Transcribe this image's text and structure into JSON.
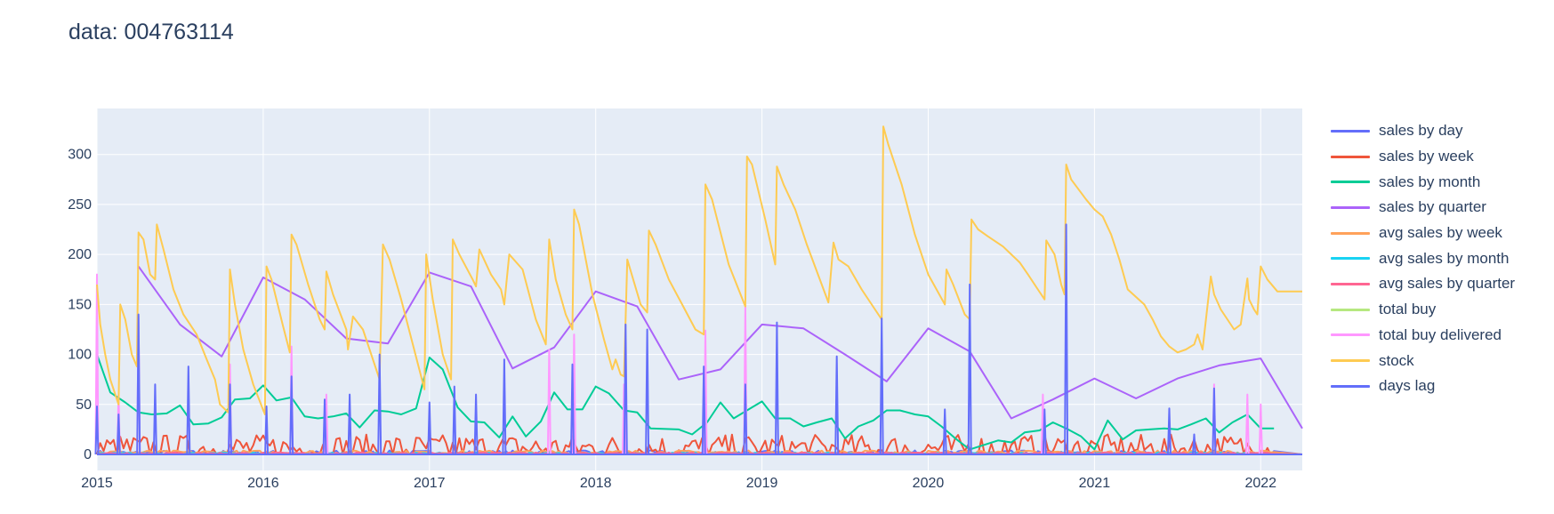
{
  "title": "data: 004763114",
  "colors": {
    "plot_bg": "#e5ecf6",
    "grid": "#ffffff",
    "text": "#2a3f5f"
  },
  "chart_data": {
    "type": "line",
    "title": "data: 004763114",
    "xlabel": "",
    "ylabel": "",
    "xlim": [
      2015.0,
      2022.25
    ],
    "ylim": [
      -16,
      346
    ],
    "x_ticks": [
      2015,
      2016,
      2017,
      2018,
      2019,
      2020,
      2021,
      2022
    ],
    "x_tick_labels": [
      "2015",
      "2016",
      "2017",
      "2018",
      "2019",
      "2020",
      "2021",
      "2022"
    ],
    "y_ticks": [
      0,
      50,
      100,
      150,
      200,
      250,
      300
    ],
    "y_tick_labels": [
      "0",
      "50",
      "100",
      "150",
      "200",
      "250",
      "300"
    ],
    "grid": true,
    "legend_position": "right",
    "series": [
      {
        "name": "sales by day",
        "color": "#636efa",
        "style": "noise",
        "level": 1,
        "amp": 3
      },
      {
        "name": "sales by week",
        "color": "#ef553b",
        "style": "noise",
        "level": 6,
        "amp": 14
      },
      {
        "name": "sales by month",
        "color": "#00cc96",
        "style": "line",
        "x": [
          2015.0,
          2015.08,
          2015.17,
          2015.25,
          2015.33,
          2015.42,
          2015.5,
          2015.58,
          2015.67,
          2015.75,
          2015.83,
          2015.92,
          2016.0,
          2016.08,
          2016.17,
          2016.25,
          2016.33,
          2016.42,
          2016.5,
          2016.58,
          2016.67,
          2016.75,
          2016.83,
          2016.92,
          2017.0,
          2017.08,
          2017.17,
          2017.25,
          2017.33,
          2017.42,
          2017.5,
          2017.58,
          2017.67,
          2017.75,
          2017.83,
          2017.92,
          2018.0,
          2018.08,
          2018.17,
          2018.25,
          2018.33,
          2018.5,
          2018.58,
          2018.67,
          2018.75,
          2018.83,
          2018.92,
          2019.0,
          2019.08,
          2019.17,
          2019.25,
          2019.33,
          2019.42,
          2019.5,
          2019.58,
          2019.67,
          2019.75,
          2019.83,
          2019.92,
          2020.0,
          2020.08,
          2020.17,
          2020.25,
          2020.42,
          2020.5,
          2020.58,
          2020.67,
          2020.75,
          2020.83,
          2020.92,
          2021.0,
          2021.08,
          2021.17,
          2021.25,
          2021.33,
          2021.42,
          2021.5,
          2021.58,
          2021.67,
          2021.75,
          2021.83,
          2021.92,
          2022.0,
          2022.08
        ],
        "y": [
          100,
          62,
          52,
          42,
          40,
          41,
          49,
          30,
          31,
          37,
          55,
          56,
          69,
          54,
          57,
          38,
          36,
          38,
          41,
          27,
          44,
          43,
          40,
          46,
          97,
          85,
          47,
          33,
          32,
          17,
          38,
          18,
          33,
          62,
          45,
          45,
          68,
          61,
          44,
          42,
          26,
          25,
          20,
          32,
          52,
          36,
          45,
          53,
          36,
          36,
          28,
          32,
          36,
          16,
          28,
          34,
          44,
          44,
          40,
          38,
          28,
          15,
          5,
          14,
          12,
          22,
          24,
          32,
          26,
          18,
          5,
          34,
          15,
          24,
          25,
          26,
          25,
          30,
          36,
          22,
          32,
          40,
          26,
          26
        ]
      },
      {
        "name": "sales by quarter",
        "color": "#ab63fa",
        "style": "line",
        "x": [
          2015.25,
          2015.5,
          2015.75,
          2016.0,
          2016.25,
          2016.5,
          2016.75,
          2017.0,
          2017.25,
          2017.5,
          2017.75,
          2018.0,
          2018.25,
          2018.5,
          2018.75,
          2019.0,
          2019.25,
          2019.5,
          2019.75,
          2020.0,
          2020.25,
          2020.5,
          2020.75,
          2021.0,
          2021.25,
          2021.5,
          2021.75,
          2022.0,
          2022.25
        ],
        "y": [
          188,
          130,
          98,
          177,
          155,
          116,
          111,
          182,
          168,
          86,
          107,
          163,
          148,
          75,
          85,
          130,
          126,
          100,
          73,
          126,
          103,
          36,
          55,
          76,
          56,
          76,
          89,
          96,
          26
        ]
      },
      {
        "name": "avg sales by week",
        "color": "#ffa15a",
        "style": "noise",
        "level": 2,
        "amp": 2
      },
      {
        "name": "avg sales by month",
        "color": "#19d3f3",
        "style": "noise",
        "level": 1,
        "amp": 1
      },
      {
        "name": "avg sales by quarter",
        "color": "#ff6692",
        "style": "noise",
        "level": 1,
        "amp": 1
      },
      {
        "name": "total buy",
        "color": "#b6e880",
        "style": "zero"
      },
      {
        "name": "total buy delivered",
        "color": "#ff97ff",
        "style": "spikes",
        "x": [
          2015.0,
          2015.13,
          2015.25,
          2015.8,
          2016.17,
          2016.38,
          2017.72,
          2017.87,
          2018.17,
          2018.66,
          2018.9,
          2020.69,
          2021.72,
          2021.92,
          2022.0
        ],
        "y": [
          180,
          60,
          138,
          90,
          108,
          60,
          105,
          120,
          70,
          124,
          150,
          60,
          70,
          60,
          50
        ]
      },
      {
        "name": "stock",
        "color": "#fecb52",
        "style": "line",
        "x": [
          2015.0,
          2015.02,
          2015.05,
          2015.08,
          2015.13,
          2015.14,
          2015.17,
          2015.21,
          2015.24,
          2015.25,
          2015.28,
          2015.32,
          2015.35,
          2015.36,
          2015.4,
          2015.46,
          2015.52,
          2015.6,
          2015.66,
          2015.71,
          2015.74,
          2015.79,
          2015.8,
          2015.83,
          2015.88,
          2015.94,
          2016.01,
          2016.02,
          2016.05,
          2016.12,
          2016.16,
          2016.17,
          2016.2,
          2016.27,
          2016.34,
          2016.37,
          2016.38,
          2016.42,
          2016.5,
          2016.51,
          2016.54,
          2016.6,
          2016.63,
          2016.7,
          2016.72,
          2016.76,
          2016.83,
          2016.9,
          2016.97,
          2016.98,
          2017.02,
          2017.08,
          2017.13,
          2017.14,
          2017.18,
          2017.26,
          2017.28,
          2017.3,
          2017.37,
          2017.43,
          2017.45,
          2017.48,
          2017.56,
          2017.64,
          2017.7,
          2017.72,
          2017.76,
          2017.82,
          2017.86,
          2017.87,
          2017.9,
          2017.98,
          2018.05,
          2018.1,
          2018.12,
          2018.15,
          2018.17,
          2018.19,
          2018.27,
          2018.31,
          2018.32,
          2018.36,
          2018.44,
          2018.52,
          2018.6,
          2018.65,
          2018.66,
          2018.7,
          2018.8,
          2018.9,
          2018.91,
          2018.94,
          2019.02,
          2019.08,
          2019.09,
          2019.13,
          2019.2,
          2019.27,
          2019.4,
          2019.43,
          2019.46,
          2019.52,
          2019.6,
          2019.68,
          2019.72,
          2019.73,
          2019.76,
          2019.84,
          2019.92,
          2020.0,
          2020.1,
          2020.11,
          2020.15,
          2020.22,
          2020.25,
          2020.26,
          2020.3,
          2020.36,
          2020.45,
          2020.5,
          2020.55,
          2020.6,
          2020.66,
          2020.7,
          2020.71,
          2020.76,
          2020.8,
          2020.82,
          2020.83,
          2020.86,
          2020.95,
          2021.0,
          2021.05,
          2021.1,
          2021.15,
          2021.2,
          2021.3,
          2021.35,
          2021.4,
          2021.45,
          2021.5,
          2021.55,
          2021.6,
          2021.62,
          2021.65,
          2021.7,
          2021.72,
          2021.76,
          2021.84,
          2021.88,
          2021.92,
          2021.93,
          2021.96,
          2021.98,
          2022.0,
          2022.04,
          2022.1,
          2022.25
        ],
        "y": [
          170,
          130,
          100,
          75,
          50,
          150,
          135,
          100,
          88,
          222,
          215,
          180,
          175,
          230,
          205,
          165,
          140,
          120,
          95,
          75,
          50,
          42,
          185,
          150,
          105,
          70,
          40,
          188,
          175,
          128,
          102,
          220,
          210,
          170,
          135,
          125,
          183,
          160,
          125,
          105,
          138,
          125,
          110,
          75,
          210,
          195,
          155,
          110,
          65,
          200,
          155,
          100,
          75,
          215,
          200,
          175,
          168,
          205,
          180,
          165,
          150,
          200,
          185,
          135,
          110,
          215,
          175,
          140,
          125,
          245,
          230,
          160,
          115,
          85,
          95,
          80,
          78,
          195,
          150,
          142,
          224,
          210,
          175,
          150,
          125,
          120,
          270,
          255,
          190,
          148,
          298,
          290,
          235,
          190,
          288,
          270,
          245,
          210,
          152,
          212,
          195,
          188,
          165,
          145,
          135,
          328,
          310,
          270,
          220,
          180,
          150,
          185,
          170,
          140,
          135,
          235,
          225,
          218,
          208,
          200,
          192,
          180,
          165,
          155,
          214,
          200,
          170,
          160,
          290,
          275,
          255,
          245,
          238,
          220,
          195,
          165,
          150,
          135,
          118,
          108,
          102,
          105,
          110,
          120,
          105,
          178,
          160,
          145,
          125,
          130,
          176,
          155,
          145,
          140,
          188,
          175,
          163,
          163
        ]
      },
      {
        "name": "days lag",
        "color": "#636efa",
        "style": "spikes",
        "x": [
          2015.0,
          2015.13,
          2015.25,
          2015.35,
          2015.55,
          2015.8,
          2016.02,
          2016.17,
          2016.37,
          2016.52,
          2016.7,
          2017.0,
          2017.15,
          2017.28,
          2017.45,
          2017.86,
          2018.18,
          2018.31,
          2018.65,
          2018.9,
          2019.09,
          2019.45,
          2019.72,
          2020.1,
          2020.25,
          2020.7,
          2020.83,
          2021.45,
          2021.6,
          2021.72
        ],
        "y": [
          48,
          40,
          140,
          70,
          88,
          70,
          48,
          78,
          55,
          60,
          100,
          52,
          68,
          60,
          95,
          90,
          130,
          125,
          88,
          70,
          132,
          98,
          136,
          45,
          170,
          45,
          230,
          46,
          20,
          66
        ]
      }
    ]
  }
}
